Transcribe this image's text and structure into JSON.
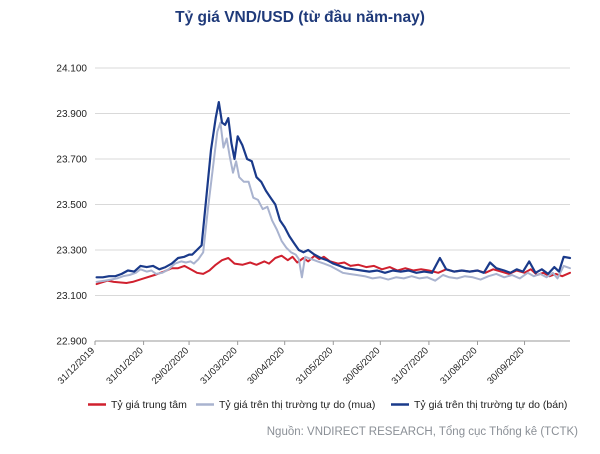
{
  "chart_data": {
    "type": "line",
    "title": "Tỷ giá VND/USD (từ đầu năm-nay)",
    "xlabel": "",
    "ylabel": "",
    "ylim": [
      22900,
      24100
    ],
    "y_ticks": [
      22900,
      23100,
      23300,
      23500,
      23700,
      23900,
      24100
    ],
    "y_tick_labels": [
      "22.900",
      "23.100",
      "23.300",
      "23.500",
      "23.700",
      "23.900",
      "24.100"
    ],
    "x_ticks": [
      "2019-12-31",
      "2020-01-31",
      "2020-02-29",
      "2020-03-31",
      "2020-04-30",
      "2020-05-31",
      "2020-06-30",
      "2020-07-31",
      "2020-08-31",
      "2020-09-30"
    ],
    "x_tick_labels": [
      "31/12/2019",
      "31/01/2020",
      "29/02/2020",
      "31/03/2020",
      "30/04/2020",
      "31/05/2020",
      "30/06/2020",
      "31/07/2020",
      "31/08/2020",
      "30/09/2020"
    ],
    "xlim": [
      "2019-12-31",
      "2020-10-29"
    ],
    "grid": true,
    "legend": "bottom",
    "series": [
      {
        "name": "Tỷ giá trung tâm",
        "color": "#d0202e",
        "points": [
          [
            "2020-01-01",
            23150
          ],
          [
            "2020-01-03",
            23155
          ],
          [
            "2020-01-08",
            23165
          ],
          [
            "2020-01-12",
            23160
          ],
          [
            "2020-01-20",
            23155
          ],
          [
            "2020-01-24",
            23160
          ],
          [
            "2020-01-31",
            23175
          ],
          [
            "2020-02-07",
            23190
          ],
          [
            "2020-02-13",
            23205
          ],
          [
            "2020-02-18",
            23220
          ],
          [
            "2020-02-22",
            23220
          ],
          [
            "2020-02-26",
            23230
          ],
          [
            "2020-03-01",
            23215
          ],
          [
            "2020-03-05",
            23200
          ],
          [
            "2020-03-09",
            23195
          ],
          [
            "2020-03-13",
            23210
          ],
          [
            "2020-03-17",
            23235
          ],
          [
            "2020-03-21",
            23255
          ],
          [
            "2020-03-25",
            23265
          ],
          [
            "2020-03-29",
            23240
          ],
          [
            "2020-04-03",
            23235
          ],
          [
            "2020-04-08",
            23245
          ],
          [
            "2020-04-12",
            23235
          ],
          [
            "2020-04-17",
            23250
          ],
          [
            "2020-04-20",
            23240
          ],
          [
            "2020-04-24",
            23265
          ],
          [
            "2020-04-28",
            23275
          ],
          [
            "2020-05-02",
            23255
          ],
          [
            "2020-05-05",
            23270
          ],
          [
            "2020-05-08",
            23245
          ],
          [
            "2020-05-12",
            23265
          ],
          [
            "2020-05-15",
            23250
          ],
          [
            "2020-05-19",
            23275
          ],
          [
            "2020-05-22",
            23260
          ],
          [
            "2020-05-25",
            23270
          ],
          [
            "2020-05-29",
            23250
          ],
          [
            "2020-06-03",
            23240
          ],
          [
            "2020-06-07",
            23245
          ],
          [
            "2020-06-11",
            23230
          ],
          [
            "2020-06-16",
            23235
          ],
          [
            "2020-06-21",
            23225
          ],
          [
            "2020-06-26",
            23230
          ],
          [
            "2020-07-01",
            23215
          ],
          [
            "2020-07-06",
            23225
          ],
          [
            "2020-07-11",
            23210
          ],
          [
            "2020-07-16",
            23220
          ],
          [
            "2020-07-21",
            23210
          ],
          [
            "2020-07-26",
            23215
          ],
          [
            "2020-07-31",
            23210
          ],
          [
            "2020-08-06",
            23200
          ],
          [
            "2020-08-11",
            23215
          ],
          [
            "2020-08-16",
            23205
          ],
          [
            "2020-08-21",
            23210
          ],
          [
            "2020-08-26",
            23205
          ],
          [
            "2020-08-31",
            23210
          ],
          [
            "2020-09-05",
            23200
          ],
          [
            "2020-09-10",
            23215
          ],
          [
            "2020-09-15",
            23205
          ],
          [
            "2020-09-20",
            23195
          ],
          [
            "2020-09-25",
            23210
          ],
          [
            "2020-09-30",
            23200
          ],
          [
            "2020-10-04",
            23215
          ],
          [
            "2020-10-08",
            23190
          ],
          [
            "2020-10-12",
            23200
          ],
          [
            "2020-10-16",
            23185
          ],
          [
            "2020-10-20",
            23195
          ],
          [
            "2020-10-24",
            23185
          ],
          [
            "2020-10-29",
            23200
          ]
        ]
      },
      {
        "name": "Tỷ giá trên thị trường tự do (mua)",
        "color": "#a9b3cf",
        "points": [
          [
            "2020-01-01",
            23160
          ],
          [
            "2020-01-06",
            23165
          ],
          [
            "2020-01-10",
            23170
          ],
          [
            "2020-01-14",
            23175
          ],
          [
            "2020-01-18",
            23185
          ],
          [
            "2020-01-22",
            23190
          ],
          [
            "2020-01-26",
            23200
          ],
          [
            "2020-01-29",
            23215
          ],
          [
            "2020-02-02",
            23205
          ],
          [
            "2020-02-05",
            23210
          ],
          [
            "2020-02-08",
            23195
          ],
          [
            "2020-02-12",
            23200
          ],
          [
            "2020-02-16",
            23215
          ],
          [
            "2020-02-20",
            23240
          ],
          [
            "2020-02-24",
            23250
          ],
          [
            "2020-02-27",
            23245
          ],
          [
            "2020-03-01",
            23250
          ],
          [
            "2020-03-03",
            23240
          ],
          [
            "2020-03-06",
            23260
          ],
          [
            "2020-03-09",
            23290
          ],
          [
            "2020-03-12",
            23480
          ],
          [
            "2020-03-15",
            23650
          ],
          [
            "2020-03-18",
            23820
          ],
          [
            "2020-03-20",
            23860
          ],
          [
            "2020-03-22",
            23750
          ],
          [
            "2020-03-24",
            23790
          ],
          [
            "2020-03-26",
            23710
          ],
          [
            "2020-03-28",
            23640
          ],
          [
            "2020-03-30",
            23690
          ],
          [
            "2020-04-01",
            23620
          ],
          [
            "2020-04-04",
            23600
          ],
          [
            "2020-04-07",
            23600
          ],
          [
            "2020-04-10",
            23530
          ],
          [
            "2020-04-13",
            23520
          ],
          [
            "2020-04-16",
            23480
          ],
          [
            "2020-04-19",
            23490
          ],
          [
            "2020-04-22",
            23430
          ],
          [
            "2020-04-25",
            23390
          ],
          [
            "2020-04-28",
            23340
          ],
          [
            "2020-05-01",
            23310
          ],
          [
            "2020-05-04",
            23290
          ],
          [
            "2020-05-07",
            23280
          ],
          [
            "2020-05-09",
            23260
          ],
          [
            "2020-05-11",
            23180
          ],
          [
            "2020-05-13",
            23270
          ],
          [
            "2020-05-17",
            23260
          ],
          [
            "2020-05-21",
            23250
          ],
          [
            "2020-05-25",
            23240
          ],
          [
            "2020-05-29",
            23230
          ],
          [
            "2020-06-02",
            23215
          ],
          [
            "2020-06-06",
            23200
          ],
          [
            "2020-06-10",
            23195
          ],
          [
            "2020-06-15",
            23190
          ],
          [
            "2020-06-20",
            23185
          ],
          [
            "2020-06-25",
            23175
          ],
          [
            "2020-06-30",
            23180
          ],
          [
            "2020-07-05",
            23170
          ],
          [
            "2020-07-10",
            23180
          ],
          [
            "2020-07-15",
            23175
          ],
          [
            "2020-07-20",
            23185
          ],
          [
            "2020-07-25",
            23175
          ],
          [
            "2020-07-30",
            23180
          ],
          [
            "2020-08-04",
            23165
          ],
          [
            "2020-08-09",
            23190
          ],
          [
            "2020-08-13",
            23180
          ],
          [
            "2020-08-18",
            23175
          ],
          [
            "2020-08-23",
            23185
          ],
          [
            "2020-08-28",
            23180
          ],
          [
            "2020-09-02",
            23170
          ],
          [
            "2020-09-07",
            23185
          ],
          [
            "2020-09-12",
            23195
          ],
          [
            "2020-09-17",
            23180
          ],
          [
            "2020-09-22",
            23190
          ],
          [
            "2020-09-27",
            23175
          ],
          [
            "2020-10-02",
            23200
          ],
          [
            "2020-10-06",
            23185
          ],
          [
            "2020-10-10",
            23195
          ],
          [
            "2020-10-14",
            23180
          ],
          [
            "2020-10-18",
            23200
          ],
          [
            "2020-10-21",
            23175
          ],
          [
            "2020-10-25",
            23230
          ],
          [
            "2020-10-29",
            23220
          ]
        ]
      },
      {
        "name": "Tỷ giá trên thị trường tự do (bán)",
        "color": "#1a3a8a",
        "points": [
          [
            "2020-01-01",
            23180
          ],
          [
            "2020-01-05",
            23180
          ],
          [
            "2020-01-09",
            23185
          ],
          [
            "2020-01-13",
            23185
          ],
          [
            "2020-01-17",
            23195
          ],
          [
            "2020-01-21",
            23210
          ],
          [
            "2020-01-25",
            23205
          ],
          [
            "2020-01-29",
            23230
          ],
          [
            "2020-02-02",
            23225
          ],
          [
            "2020-02-06",
            23230
          ],
          [
            "2020-02-10",
            23215
          ],
          [
            "2020-02-14",
            23225
          ],
          [
            "2020-02-18",
            23240
          ],
          [
            "2020-02-22",
            23265
          ],
          [
            "2020-02-26",
            23270
          ],
          [
            "2020-02-29",
            23280
          ],
          [
            "2020-03-02",
            23280
          ],
          [
            "2020-03-05",
            23300
          ],
          [
            "2020-03-08",
            23320
          ],
          [
            "2020-03-11",
            23530
          ],
          [
            "2020-03-14",
            23740
          ],
          [
            "2020-03-17",
            23880
          ],
          [
            "2020-03-19",
            23950
          ],
          [
            "2020-03-21",
            23860
          ],
          [
            "2020-03-23",
            23850
          ],
          [
            "2020-03-25",
            23880
          ],
          [
            "2020-03-27",
            23770
          ],
          [
            "2020-03-29",
            23700
          ],
          [
            "2020-03-31",
            23800
          ],
          [
            "2020-04-03",
            23760
          ],
          [
            "2020-04-06",
            23700
          ],
          [
            "2020-04-09",
            23690
          ],
          [
            "2020-04-12",
            23620
          ],
          [
            "2020-04-15",
            23600
          ],
          [
            "2020-04-18",
            23560
          ],
          [
            "2020-04-21",
            23530
          ],
          [
            "2020-04-24",
            23500
          ],
          [
            "2020-04-27",
            23430
          ],
          [
            "2020-04-30",
            23400
          ],
          [
            "2020-05-03",
            23360
          ],
          [
            "2020-05-06",
            23330
          ],
          [
            "2020-05-09",
            23300
          ],
          [
            "2020-05-12",
            23290
          ],
          [
            "2020-05-15",
            23300
          ],
          [
            "2020-05-19",
            23280
          ],
          [
            "2020-05-23",
            23265
          ],
          [
            "2020-05-27",
            23255
          ],
          [
            "2020-05-31",
            23240
          ],
          [
            "2020-06-04",
            23230
          ],
          [
            "2020-06-08",
            23220
          ],
          [
            "2020-06-13",
            23215
          ],
          [
            "2020-06-18",
            23210
          ],
          [
            "2020-06-23",
            23205
          ],
          [
            "2020-06-28",
            23210
          ],
          [
            "2020-07-03",
            23200
          ],
          [
            "2020-07-08",
            23210
          ],
          [
            "2020-07-13",
            23205
          ],
          [
            "2020-07-18",
            23210
          ],
          [
            "2020-07-23",
            23200
          ],
          [
            "2020-07-28",
            23205
          ],
          [
            "2020-08-02",
            23200
          ],
          [
            "2020-08-07",
            23265
          ],
          [
            "2020-08-11",
            23215
          ],
          [
            "2020-08-16",
            23205
          ],
          [
            "2020-08-21",
            23210
          ],
          [
            "2020-08-26",
            23205
          ],
          [
            "2020-08-31",
            23210
          ],
          [
            "2020-09-04",
            23200
          ],
          [
            "2020-09-08",
            23245
          ],
          [
            "2020-09-12",
            23220
          ],
          [
            "2020-09-17",
            23210
          ],
          [
            "2020-09-21",
            23200
          ],
          [
            "2020-09-25",
            23215
          ],
          [
            "2020-09-29",
            23205
          ],
          [
            "2020-10-03",
            23250
          ],
          [
            "2020-10-07",
            23200
          ],
          [
            "2020-10-11",
            23215
          ],
          [
            "2020-10-15",
            23195
          ],
          [
            "2020-10-19",
            23225
          ],
          [
            "2020-10-22",
            23205
          ],
          [
            "2020-10-25",
            23270
          ],
          [
            "2020-10-29",
            23265
          ]
        ]
      }
    ]
  },
  "source_note": "Nguồn: VNDIRECT RESEARCH, Tổng cục Thống kê (TCTK)"
}
